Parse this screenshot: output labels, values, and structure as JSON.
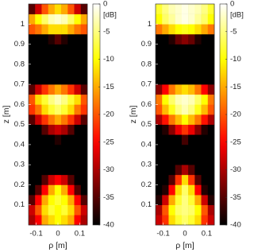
{
  "chart_data": [
    {
      "type": "heatmap",
      "colormap": "hot",
      "xlabel": "ρ [m]",
      "ylabel": "z [m]",
      "xlim": [
        -0.135,
        0.135
      ],
      "ylim": [
        0,
        1.1
      ],
      "xticks": [
        -0.1,
        0,
        0.1
      ],
      "yticks": [
        0.1,
        0.2,
        0.3,
        0.4,
        0.5,
        0.6,
        0.7,
        0.8,
        0.9,
        1
      ],
      "x": [
        -0.12,
        -0.09,
        -0.06,
        -0.03,
        0,
        0.03,
        0.06,
        0.09,
        0.12
      ],
      "y": [
        0.025,
        0.075,
        0.125,
        0.175,
        0.225,
        0.275,
        0.325,
        0.375,
        0.425,
        0.475,
        0.525,
        0.575,
        0.625,
        0.675,
        0.725,
        0.775,
        0.825,
        0.875,
        0.925,
        0.975,
        1.025,
        1.075
      ],
      "values": [
        [
          -30,
          -25,
          -15,
          -12,
          -10,
          -12,
          -15,
          -25,
          -30
        ],
        [
          -28,
          -20,
          -12,
          -8,
          -10,
          -8,
          -12,
          -20,
          -28
        ],
        [
          -35,
          -25,
          -15,
          -10,
          -8,
          -10,
          -15,
          -25,
          -35
        ],
        [
          -40,
          -35,
          -25,
          -15,
          -10,
          -15,
          -25,
          -35,
          -40
        ],
        [
          -40,
          -40,
          -35,
          -28,
          -25,
          -28,
          -35,
          -40,
          -40
        ],
        [
          -40,
          -40,
          -40,
          -40,
          -40,
          -40,
          -40,
          -40,
          -40
        ],
        [
          -40,
          -40,
          -40,
          -40,
          -40,
          -40,
          -40,
          -40,
          -40
        ],
        [
          -40,
          -40,
          -40,
          -40,
          -40,
          -40,
          -40,
          -40,
          -40
        ],
        [
          -40,
          -40,
          -40,
          -40,
          -38,
          -40,
          -40,
          -40,
          -40
        ],
        [
          -40,
          -40,
          -35,
          -30,
          -28,
          -30,
          -35,
          -40,
          -40
        ],
        [
          -35,
          -28,
          -22,
          -18,
          -15,
          -18,
          -22,
          -28,
          -35
        ],
        [
          -22,
          -18,
          -12,
          -8,
          -6,
          -8,
          -12,
          -18,
          -22
        ],
        [
          -20,
          -12,
          -8,
          -5,
          -3,
          -5,
          -8,
          -12,
          -20
        ],
        [
          -35,
          -28,
          -22,
          -18,
          -15,
          -18,
          -22,
          -28,
          -35
        ],
        [
          -40,
          -40,
          -40,
          -40,
          -40,
          -40,
          -40,
          -40,
          -40
        ],
        [
          -40,
          -40,
          -40,
          -40,
          -40,
          -40,
          -40,
          -40,
          -40
        ],
        [
          -40,
          -40,
          -40,
          -40,
          -40,
          -40,
          -40,
          -40,
          -40
        ],
        [
          -40,
          -40,
          -40,
          -40,
          -40,
          -40,
          -40,
          -40,
          -40
        ],
        [
          -40,
          -40,
          -40,
          -38,
          -35,
          -38,
          -40,
          -40,
          -40
        ],
        [
          -20,
          -18,
          -15,
          -12,
          -12,
          -12,
          -15,
          -18,
          -20
        ],
        [
          -15,
          -10,
          -6,
          -3,
          -2,
          -3,
          -6,
          -10,
          -15
        ],
        [
          -35,
          -28,
          -20,
          -15,
          -12,
          -15,
          -20,
          -28,
          -35
        ]
      ],
      "colorbar": {
        "label": "[dB]",
        "clim": [
          -40,
          0
        ],
        "ticks": [
          0,
          -5,
          -10,
          -15,
          -20,
          -25,
          -30,
          -35,
          -40
        ]
      }
    },
    {
      "type": "heatmap",
      "colormap": "hot",
      "xlabel": "ρ [m]",
      "ylabel": "z [m]",
      "xlim": [
        -0.135,
        0.135
      ],
      "ylim": [
        0,
        1.1
      ],
      "xticks": [
        -0.1,
        0,
        0.1
      ],
      "yticks": [
        0.1,
        0.2,
        0.3,
        0.4,
        0.5,
        0.6,
        0.7,
        0.8,
        0.9,
        1
      ],
      "x": [
        -0.12,
        -0.09,
        -0.06,
        -0.03,
        0,
        0.03,
        0.06,
        0.09,
        0.12
      ],
      "y": [
        0.025,
        0.075,
        0.125,
        0.175,
        0.225,
        0.275,
        0.325,
        0.375,
        0.425,
        0.475,
        0.525,
        0.575,
        0.625,
        0.675,
        0.725,
        0.775,
        0.825,
        0.875,
        0.925,
        0.975,
        1.025,
        1.075
      ],
      "values": [
        [
          -28,
          -22,
          -12,
          -8,
          -6,
          -8,
          -12,
          -22,
          -28
        ],
        [
          -30,
          -20,
          -10,
          -6,
          -5,
          -6,
          -10,
          -20,
          -30
        ],
        [
          -38,
          -28,
          -15,
          -8,
          -5,
          -8,
          -15,
          -28,
          -38
        ],
        [
          -40,
          -38,
          -25,
          -12,
          -6,
          -12,
          -25,
          -38,
          -40
        ],
        [
          -40,
          -40,
          -35,
          -22,
          -12,
          -22,
          -35,
          -40,
          -40
        ],
        [
          -40,
          -40,
          -40,
          -35,
          -30,
          -35,
          -40,
          -40,
          -40
        ],
        [
          -40,
          -40,
          -40,
          -40,
          -40,
          -40,
          -40,
          -40,
          -40
        ],
        [
          -40,
          -40,
          -40,
          -40,
          -40,
          -40,
          -40,
          -40,
          -40
        ],
        [
          -40,
          -40,
          -40,
          -40,
          -36,
          -40,
          -40,
          -40,
          -40
        ],
        [
          -40,
          -38,
          -32,
          -26,
          -22,
          -26,
          -32,
          -38,
          -40
        ],
        [
          -30,
          -24,
          -18,
          -14,
          -10,
          -14,
          -18,
          -24,
          -30
        ],
        [
          -20,
          -14,
          -9,
          -5,
          -3,
          -5,
          -9,
          -14,
          -20
        ],
        [
          -18,
          -10,
          -6,
          -3,
          -2,
          -3,
          -6,
          -10,
          -18
        ],
        [
          -32,
          -25,
          -18,
          -14,
          -12,
          -14,
          -18,
          -25,
          -32
        ],
        [
          -40,
          -40,
          -40,
          -40,
          -40,
          -40,
          -40,
          -40,
          -40
        ],
        [
          -40,
          -40,
          -40,
          -40,
          -40,
          -40,
          -40,
          -40,
          -40
        ],
        [
          -40,
          -40,
          -40,
          -40,
          -40,
          -40,
          -40,
          -40,
          -40
        ],
        [
          -40,
          -40,
          -40,
          -40,
          -40,
          -40,
          -40,
          -40,
          -40
        ],
        [
          -40,
          -40,
          -38,
          -34,
          -32,
          -34,
          -38,
          -40,
          -40
        ],
        [
          -18,
          -15,
          -12,
          -10,
          -9,
          -10,
          -12,
          -15,
          -18
        ],
        [
          -10,
          -6,
          -4,
          -2,
          -1,
          -2,
          -4,
          -6,
          -10
        ],
        [
          -8,
          -5,
          -3,
          -2,
          -1,
          -2,
          -3,
          -5,
          -8
        ]
      ],
      "colorbar": {
        "label": "[dB]",
        "clim": [
          -40,
          0
        ],
        "ticks": [
          0,
          -5,
          -10,
          -15,
          -20,
          -25,
          -30,
          -35,
          -40
        ]
      }
    }
  ]
}
